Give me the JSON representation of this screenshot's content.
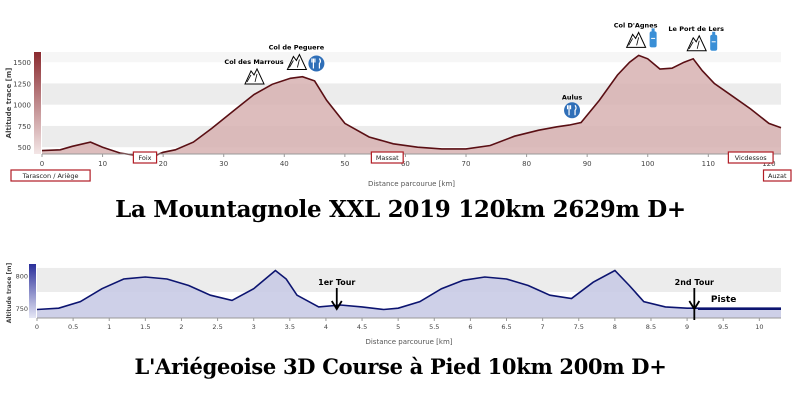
{
  "colors": {
    "profile1_line": "#5a0f14",
    "profile1_fill": "#d7b2b2",
    "profile1_scalebar": "#8a2a2f",
    "profile2_line": "#0c1470",
    "profile2_fill": "#c9cbe6",
    "profile2_scalebar": "#2a2f9a",
    "band": "#ececec",
    "tick_text": "#444444",
    "box_border": "#b01c24",
    "water_icon": "#3a8fd6",
    "food_icon": "#2f6fb8"
  },
  "chart_data": [
    {
      "type": "area",
      "ylabel": "Altitude trace [m]",
      "xlabel": "Distance parcourue [km]",
      "xlim": [
        0,
        122
      ],
      "ylim": [
        420,
        1620
      ],
      "y_ticks": [
        500,
        750,
        1000,
        1250,
        1500
      ],
      "x_ticks": [
        0,
        10,
        20,
        30,
        40,
        50,
        60,
        70,
        80,
        90,
        100,
        110,
        120
      ],
      "grid": "horizontal bands",
      "series": [
        {
          "x": [
            0,
            3,
            5,
            8,
            10,
            13,
            16,
            19,
            20,
            22,
            25,
            28,
            32,
            35,
            38,
            41,
            43,
            45,
            47,
            50,
            54,
            58,
            62,
            66,
            70,
            74,
            78,
            82,
            85,
            87,
            89,
            92,
            95,
            97,
            98.5,
            100,
            102,
            104,
            106,
            107.5,
            109,
            111,
            114,
            117,
            120,
            122
          ],
          "y": [
            460,
            470,
            510,
            560,
            500,
            430,
            400,
            410,
            440,
            470,
            560,
            720,
            950,
            1120,
            1240,
            1310,
            1330,
            1280,
            1050,
            780,
            620,
            540,
            500,
            480,
            480,
            520,
            630,
            700,
            740,
            760,
            790,
            1050,
            1350,
            1500,
            1580,
            1540,
            1420,
            1430,
            1500,
            1540,
            1400,
            1250,
            1100,
            950,
            780,
            730
          ]
        }
      ],
      "annotations": [
        {
          "label": "Col des Marrous",
          "x": 35,
          "y": 1150
        },
        {
          "label": "Col de Peguere",
          "x": 42,
          "y": 1320
        },
        {
          "label": "Aulus",
          "x": 88,
          "y": 770
        },
        {
          "label": "Col D'Agnes",
          "x": 98,
          "y": 1580
        },
        {
          "label": "Le Port de Lers",
          "x": 108,
          "y": 1540
        }
      ],
      "place_labels": [
        {
          "label": "Tarascon / Ariège",
          "x": 0
        },
        {
          "label": "Foix",
          "x": 17
        },
        {
          "label": "Massat",
          "x": 57
        },
        {
          "label": "Vicdessos",
          "x": 117
        },
        {
          "label": "Auzat",
          "x": 122
        }
      ]
    },
    {
      "type": "area",
      "ylabel": "Altitude trace [m]",
      "xlabel": "Distance parcourue [km]",
      "xlim": [
        0,
        10.3
      ],
      "ylim": [
        735,
        818
      ],
      "y_ticks": [
        750,
        800
      ],
      "x_ticks": [
        0,
        0.5,
        1,
        1.5,
        2,
        2.5,
        3,
        3.5,
        4,
        4.5,
        5,
        5.5,
        6,
        6.5,
        7,
        7.5,
        8,
        8.5,
        9,
        9.5,
        10
      ],
      "grid": "horizontal bands",
      "series": [
        {
          "x": [
            0,
            0.3,
            0.6,
            0.9,
            1.2,
            1.5,
            1.8,
            2.1,
            2.4,
            2.7,
            3.0,
            3.3,
            3.45,
            3.6,
            3.9,
            4.2,
            4.5,
            4.8,
            5.0,
            5.3,
            5.6,
            5.9,
            6.2,
            6.5,
            6.8,
            7.1,
            7.4,
            7.7,
            8.0,
            8.2,
            8.4,
            8.7,
            9.0,
            9.5,
            10.0,
            10.3
          ],
          "y": [
            748,
            750,
            760,
            780,
            795,
            798,
            795,
            785,
            770,
            762,
            780,
            808,
            795,
            770,
            752,
            755,
            752,
            748,
            750,
            760,
            780,
            793,
            798,
            795,
            785,
            770,
            765,
            790,
            808,
            785,
            760,
            752,
            750,
            750,
            750,
            750
          ]
        }
      ],
      "annotations": [
        {
          "label": "1er Tour",
          "x": 4.15
        },
        {
          "label": "2nd Tour",
          "x": 9.1
        },
        {
          "label": "Piste",
          "x": 9.8
        }
      ]
    }
  ],
  "captions": {
    "top": "La Mountagnole XXL 2019 120km 2629m D+",
    "bottom": "L'Ariégeoise 3D Course à Pied 10km 200m D+"
  }
}
